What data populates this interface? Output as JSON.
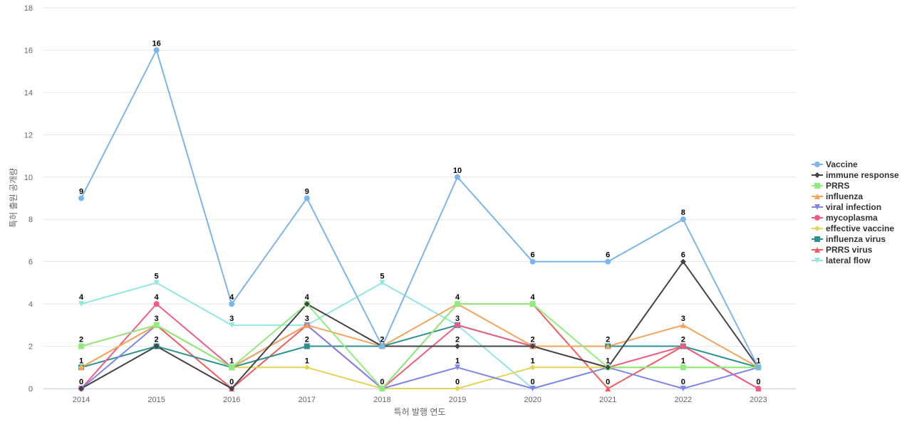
{
  "chart_data": {
    "type": "line",
    "xlabel": "특허 발행 연도",
    "ylabel": "특허 출원 공개량",
    "ylim": [
      0,
      18
    ],
    "yticks": [
      0,
      2,
      4,
      6,
      8,
      10,
      12,
      14,
      16,
      18
    ],
    "grid": "horizontal",
    "legend_position": "right",
    "x": [
      "2014",
      "2015",
      "2016",
      "2017",
      "2018",
      "2019",
      "2020",
      "2021",
      "2022",
      "2023"
    ],
    "series": [
      {
        "name": "Vaccine",
        "color": "#7cb5ec",
        "marker": "circle",
        "values": [
          9,
          16,
          4,
          9,
          2,
          10,
          6,
          6,
          8,
          1
        ],
        "labeled": true
      },
      {
        "name": "immune response",
        "color": "#434348",
        "marker": "diamond",
        "values": [
          0,
          2,
          0,
          4,
          2,
          2,
          2,
          1,
          6,
          1
        ],
        "labeled": false
      },
      {
        "name": "PRRS",
        "color": "#90ed7d",
        "marker": "square",
        "values": [
          2,
          3,
          1,
          4,
          0,
          4,
          4,
          1,
          1,
          1
        ],
        "labeled": false
      },
      {
        "name": "influenza",
        "color": "#f7a35c",
        "marker": "triangle",
        "values": [
          1,
          3,
          1,
          3,
          2,
          4,
          2,
          2,
          3,
          1
        ],
        "labeled": false
      },
      {
        "name": "viral infection",
        "color": "#8085e9",
        "marker": "triangle-down",
        "values": [
          0,
          3,
          1,
          3,
          0,
          1,
          0,
          1,
          0,
          1
        ],
        "labeled": false
      },
      {
        "name": "mycoplasma",
        "color": "#f15c80",
        "marker": "circle",
        "values": [
          0,
          4,
          1,
          3,
          0,
          3,
          2,
          1,
          2,
          0
        ],
        "labeled": false
      },
      {
        "name": "effective vaccine",
        "color": "#e4d354",
        "marker": "diamond",
        "values": [
          1,
          3,
          1,
          1,
          0,
          0,
          1,
          1,
          1,
          1
        ],
        "labeled": false
      },
      {
        "name": "influenza virus",
        "color": "#2b908f",
        "marker": "square",
        "values": [
          1,
          2,
          1,
          2,
          2,
          3,
          2,
          2,
          2,
          1
        ],
        "labeled": false
      },
      {
        "name": "PRRS virus",
        "color": "#f45b5b",
        "marker": "triangle",
        "values": [
          2,
          3,
          0,
          3,
          0,
          4,
          4,
          0,
          2,
          0
        ],
        "labeled": false
      },
      {
        "name": "lateral flow",
        "color": "#91e8e1",
        "marker": "triangle-down",
        "values": [
          4,
          5,
          3,
          3,
          5,
          3,
          0,
          1,
          1,
          1
        ],
        "labeled": false
      }
    ],
    "data_labels": [
      {
        "x": "2014",
        "texts": [
          "9",
          "4",
          "2",
          "1",
          "0"
        ]
      },
      {
        "x": "2015",
        "texts": [
          "16",
          "5",
          "4",
          "3",
          "2"
        ]
      },
      {
        "x": "2016",
        "texts": [
          "4",
          "3",
          "1",
          "0"
        ]
      },
      {
        "x": "2017",
        "texts": [
          "9",
          "4",
          "3",
          "2",
          "1"
        ]
      },
      {
        "x": "2018",
        "texts": [
          "5",
          "2",
          "0"
        ]
      },
      {
        "x": "2019",
        "texts": [
          "10",
          "4",
          "3",
          "2",
          "1",
          "0"
        ]
      },
      {
        "x": "2020",
        "texts": [
          "6",
          "4",
          "2",
          "1",
          "0"
        ]
      },
      {
        "x": "2021",
        "texts": [
          "6",
          "2",
          "1",
          "0"
        ]
      },
      {
        "x": "2022",
        "texts": [
          "8",
          "6",
          "3",
          "2",
          "1",
          "0"
        ]
      },
      {
        "x": "2023",
        "texts": [
          "1",
          "0"
        ]
      }
    ]
  }
}
